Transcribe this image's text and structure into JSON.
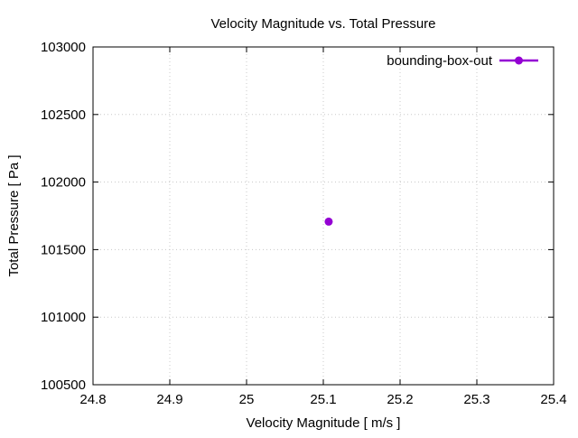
{
  "chart_data": {
    "type": "scatter",
    "title": "Velocity Magnitude vs. Total Pressure",
    "xlabel": "Velocity Magnitude [ m/s ]",
    "ylabel": "Total Pressure [ Pa ]",
    "xlim": [
      24.8,
      25.4
    ],
    "ylim": [
      100500,
      103000
    ],
    "xticks": [
      "24.8",
      "24.9",
      "25",
      "25.1",
      "25.2",
      "25.3",
      "25.4"
    ],
    "yticks": [
      "100500",
      "101000",
      "101500",
      "102000",
      "102500",
      "103000"
    ],
    "grid": true,
    "legend_position": "top-right",
    "series": [
      {
        "name": "bounding-box-out",
        "color": "#9400d3",
        "x": [
          25.107
        ],
        "y": [
          101707
        ]
      }
    ]
  }
}
